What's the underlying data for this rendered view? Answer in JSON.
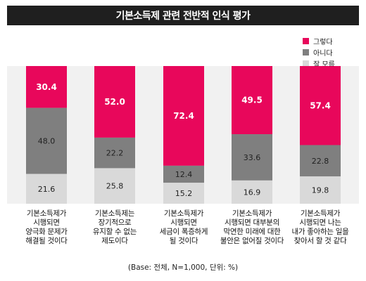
{
  "chart_data": {
    "type": "bar",
    "stacked": true,
    "title": "기본소득제 관련 전반적 인식 평가",
    "categories": [
      "기본소득제가\n시행되면\n양극화 문제가\n해결될 것이다",
      "기본소득제는\n장기적으로\n유지할 수 없는\n제도이다",
      "기본소득제가\n시행되면\n세금이 폭증하게\n될 것이다",
      "기본소득제가\n시행되면 대부분의\n막연한 미래에 대한\n불안은 없어질 것이다",
      "기본소득제가\n시행되면 나는\n내가 좋아하는 일을\n찾아서 할 것 같다"
    ],
    "series": [
      {
        "name": "그렇다",
        "color": "#e8075b",
        "values": [
          30.4,
          52.0,
          72.4,
          49.5,
          57.4
        ],
        "labels": [
          "30.4",
          "52.0",
          "72.4",
          "49.5",
          "57.4"
        ]
      },
      {
        "name": "아니다",
        "color": "#7f7f7f",
        "values": [
          48.0,
          22.2,
          12.4,
          33.6,
          22.8
        ],
        "labels": [
          "48.0",
          "22.2",
          "12.4",
          "33.6",
          "22.8"
        ]
      },
      {
        "name": "잘 모름",
        "color": "#d9d9d9",
        "values": [
          21.6,
          25.8,
          15.2,
          16.9,
          19.8
        ],
        "labels": [
          "21.6",
          "25.8",
          "15.2",
          "16.9",
          "19.8"
        ]
      }
    ],
    "ylim": [
      0,
      100
    ],
    "legend_position": "top-right",
    "footnote": "(Base: 전체, N=1,000, 단위: %)"
  }
}
